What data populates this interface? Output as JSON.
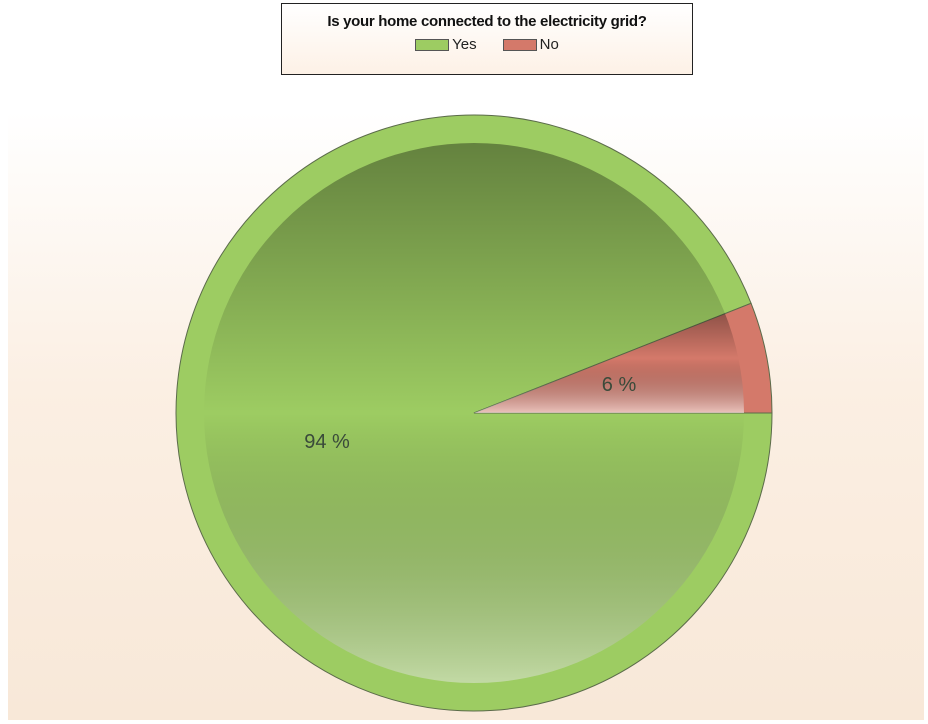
{
  "chart_data": {
    "type": "pie",
    "title": "Is your home connected to the electricity grid?",
    "legend_position": "top-center",
    "slices": [
      {
        "name": "Yes",
        "value": 94,
        "label": "94 %",
        "color": "#9dcc62"
      },
      {
        "name": "No",
        "value": 6,
        "label": "6 %",
        "color": "#d4796a"
      }
    ]
  }
}
